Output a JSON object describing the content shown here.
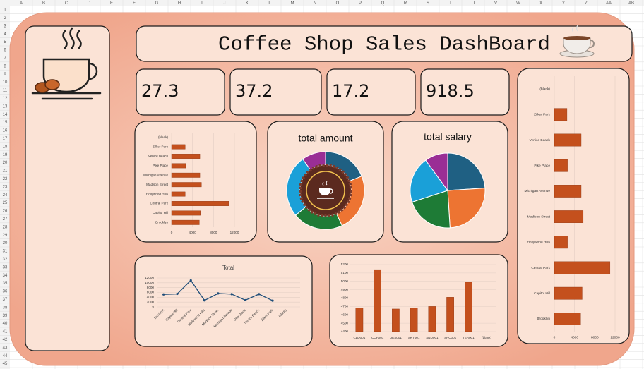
{
  "spreadsheet": {
    "columns": [
      "A",
      "B",
      "C",
      "D",
      "E",
      "F",
      "G",
      "H",
      "I",
      "J",
      "K",
      "L",
      "M",
      "N",
      "O",
      "P",
      "Q",
      "R",
      "S",
      "T",
      "U",
      "V",
      "W",
      "X",
      "Y",
      "Z",
      "AA",
      "AB"
    ],
    "rows": [
      1,
      2,
      3,
      4,
      5,
      6,
      7,
      8,
      9,
      10,
      11,
      12,
      13,
      14,
      15,
      16,
      17,
      18,
      19,
      20,
      21,
      22,
      23,
      24,
      25,
      26,
      27,
      28,
      29,
      30,
      31,
      32,
      33,
      34,
      35,
      36,
      37,
      38,
      39,
      40,
      41,
      42,
      43,
      44,
      45
    ]
  },
  "dashboard_title": "Coffee Shop Sales DashBoard",
  "kpis": [
    27.3,
    37.2,
    17.2,
    918.5
  ],
  "chart_data": [
    {
      "type": "hbar",
      "categories": [
        "(blank)",
        "Zilker Park",
        "Venice Beach",
        "Pike Place",
        "Michigan Avenue",
        "Madison Street",
        "Hollywood Hills",
        "Central Park",
        "Capitol Hill",
        "Brooklyn"
      ],
      "values": [
        null,
        2600,
        5400,
        2700,
        5400,
        5700,
        2600,
        10900,
        5500,
        5300
      ],
      "color": "#c4501d",
      "xlim": [
        0,
        12000
      ],
      "xticks": [
        0,
        4000,
        8000,
        12000
      ],
      "grid": true
    },
    {
      "type": "donut",
      "title": "total amount",
      "values": [
        19,
        24,
        21,
        26,
        10
      ],
      "colors": [
        "#1f6083",
        "#ed7432",
        "#1e7b36",
        "#1aa0d8",
        "#9a2e95"
      ]
    },
    {
      "type": "pie",
      "title": "total salary",
      "values": [
        24,
        25,
        21,
        20,
        10
      ],
      "colors": [
        "#1f6083",
        "#ed7432",
        "#1e7b36",
        "#1aa0d8",
        "#9a2e95"
      ]
    },
    {
      "type": "line",
      "title": "Total",
      "categories": [
        "Brooklyn",
        "Capitol Hill",
        "Central Park",
        "Hollywood Hills",
        "Madison Street",
        "Michigan Avenue",
        "Pike Place",
        "Venice Beach",
        "Zilker Park",
        "(blank)"
      ],
      "values": [
        5200,
        5400,
        11000,
        2700,
        5600,
        5300,
        2800,
        5300,
        2600,
        null
      ],
      "color": "#1f4e79",
      "ylim": [
        0,
        12000
      ],
      "yticks": [
        0,
        2000,
        4000,
        6000,
        8000,
        10000,
        12000
      ],
      "grid": true
    },
    {
      "type": "bar",
      "categories": [
        "CLD001",
        "COF001",
        "DES001",
        "SKT001",
        "SND001",
        "SPC001",
        "TEA001",
        "(blank)"
      ],
      "values": [
        4680,
        5140,
        4670,
        4680,
        4700,
        4810,
        4990,
        null
      ],
      "color": "#c4501d",
      "ylim": [
        4400,
        5200
      ],
      "yticks": [
        4400,
        4500,
        4600,
        4700,
        4800,
        4900,
        5000,
        5100,
        5200
      ],
      "grid": true
    },
    {
      "type": "hbar",
      "categories": [
        "(blank)",
        "Zilker Park",
        "Venice Beach",
        "Pike Place",
        "Michigan Avenue",
        "Madison Street",
        "Hollywood Hills",
        "Central Park",
        "Capitol Hill",
        "Brooklyn"
      ],
      "values": [
        null,
        2500,
        5300,
        2600,
        5300,
        5700,
        2600,
        11000,
        5500,
        5200
      ],
      "color": "#c4501d",
      "xlim": [
        0,
        12000
      ],
      "xticks": [
        0,
        4000,
        8000,
        12000
      ],
      "grid": true
    }
  ]
}
